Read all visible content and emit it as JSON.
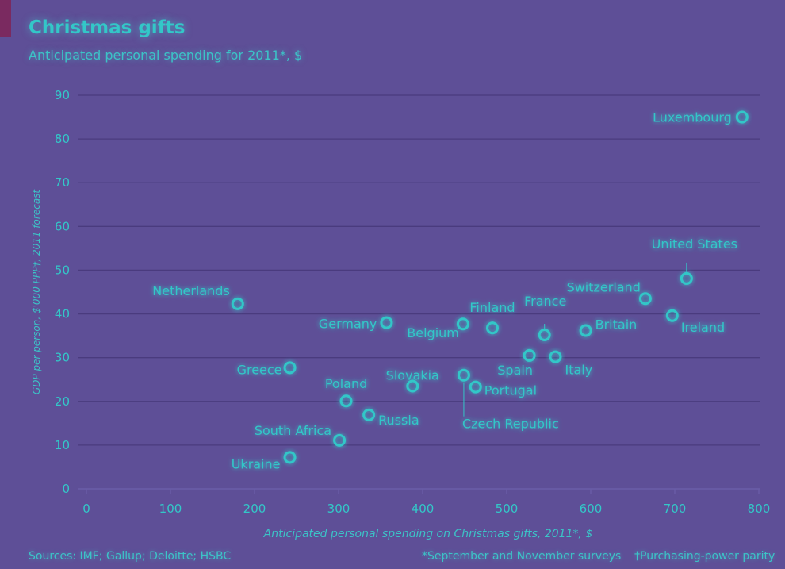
{
  "title": "Christmas gifts",
  "subtitle": "Anticipated personal spending for 2011*, $",
  "source": "Sources: IMF; Gallup; Deloitte; HSBC",
  "footnotes": [
    "*September and November surveys",
    "†Purchasing-power parity"
  ],
  "colors": {
    "background": "#5e4f97",
    "accent": "#33c7c8",
    "grid": "#4a3b7e",
    "tag": "#7a2a60"
  },
  "chart_data": {
    "type": "scatter",
    "xlabel": "Anticipated personal spending on Christmas gifts, 2011*, $",
    "ylabel": "GDP per person, $'000 PPP†, 2011 forecast",
    "xlim": [
      0,
      800
    ],
    "ylim": [
      0,
      90
    ],
    "xticks": [
      0,
      100,
      200,
      300,
      400,
      500,
      600,
      700,
      800
    ],
    "yticks": [
      0,
      10,
      20,
      30,
      40,
      50,
      60,
      70,
      80,
      90
    ],
    "grid": "horizontal",
    "points": [
      {
        "label": "Netherlands",
        "x": 180,
        "y": 42.3
      },
      {
        "label": "Germany",
        "x": 357,
        "y": 38
      },
      {
        "label": "Belgium",
        "x": 448,
        "y": 37.7
      },
      {
        "label": "Finland",
        "x": 483,
        "y": 36.8
      },
      {
        "label": "France",
        "x": 545,
        "y": 35.2
      },
      {
        "label": "Britain",
        "x": 594,
        "y": 36.2
      },
      {
        "label": "Switzerland",
        "x": 665,
        "y": 43.5
      },
      {
        "label": "Ireland",
        "x": 697,
        "y": 39.6
      },
      {
        "label": "United States",
        "x": 714,
        "y": 48.1
      },
      {
        "label": "Luxembourg",
        "x": 780,
        "y": 85
      },
      {
        "label": "Greece",
        "x": 242,
        "y": 27.7
      },
      {
        "label": "Poland",
        "x": 309,
        "y": 20.1
      },
      {
        "label": "Slovakia",
        "x": 388,
        "y": 23.5
      },
      {
        "label": "Czech Republic",
        "x": 449,
        "y": 26
      },
      {
        "label": "Portugal",
        "x": 463,
        "y": 23.3
      },
      {
        "label": "Spain",
        "x": 527,
        "y": 30.5
      },
      {
        "label": "Italy",
        "x": 558,
        "y": 30.2
      },
      {
        "label": "Russia",
        "x": 336,
        "y": 16.9
      },
      {
        "label": "South Africa",
        "x": 301,
        "y": 11.1
      },
      {
        "label": "Ukraine",
        "x": 242,
        "y": 7.2
      }
    ]
  }
}
